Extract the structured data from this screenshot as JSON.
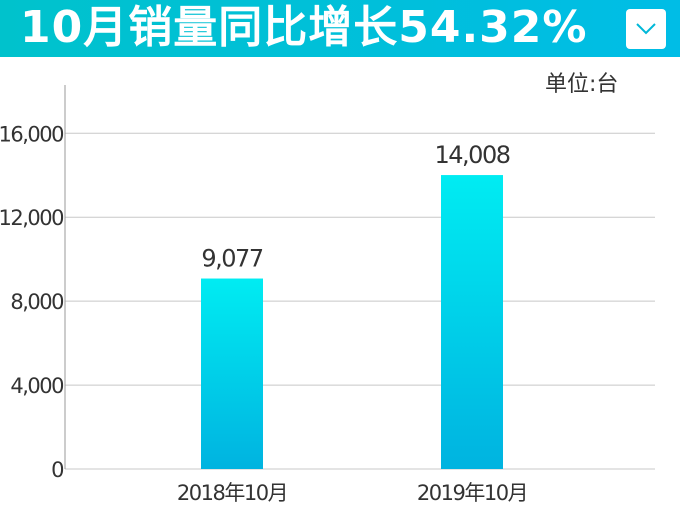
{
  "header": {
    "title": "10月销量同比增长54.32%",
    "dropdown_icon": "chevron-down-icon"
  },
  "chart_data": {
    "type": "bar",
    "title": "10月销量同比增长54.32%",
    "unit_label": "单位:台",
    "categories": [
      "2018年10月",
      "2019年10月"
    ],
    "values": [
      9077,
      14008
    ],
    "data_labels": [
      "9,077",
      "14,008"
    ],
    "y_ticks": [
      0,
      4000,
      8000,
      12000,
      16000
    ],
    "y_tick_labels": [
      "0",
      "4,000",
      "8,000",
      "12,000",
      "16,000"
    ],
    "ylim": [
      0,
      18300
    ],
    "grid": true,
    "colors": {
      "bar_top": "#00ecf2",
      "bar_bottom": "#00b3e0",
      "grid": "#c8c8c8",
      "banner": "#00bfd8"
    }
  }
}
